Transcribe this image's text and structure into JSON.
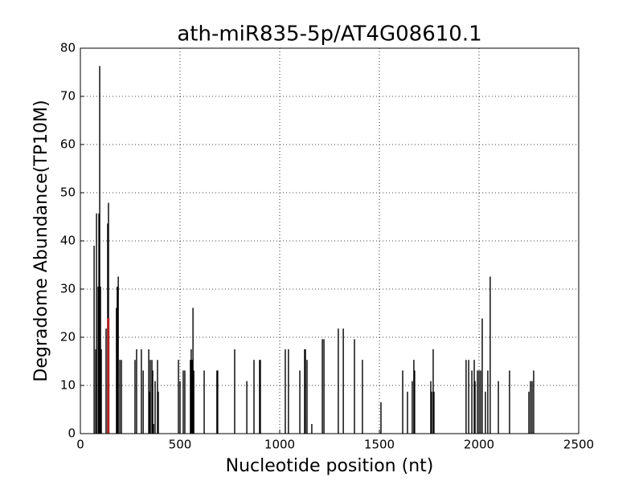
{
  "chart_data": {
    "type": "bar",
    "title": "ath-miR835-5p/AT4G08610.1",
    "x_label": "Nucleotide position (nt)",
    "y_label": "Degradome Abundance(TP10M)",
    "xlim": [
      0,
      2500
    ],
    "xticks": [
      0,
      500,
      1000,
      1500,
      2000,
      2500
    ],
    "ylim": [
      0,
      80
    ],
    "yticks": [
      0,
      10,
      20,
      30,
      40,
      50,
      60,
      70,
      80
    ],
    "grid": true,
    "series": [
      {
        "color": "#000000",
        "x": [
          69,
          77,
          81,
          89,
          93,
          97,
          101,
          105,
          129,
          137,
          141,
          181,
          185,
          190,
          198,
          206,
          274,
          282,
          306,
          315,
          343,
          347,
          351,
          359,
          363,
          367,
          375,
          387,
          391,
          492,
          500,
          516,
          524,
          552,
          556,
          560,
          565,
          569,
          621,
          685,
          689,
          774,
          835,
          871,
          899,
          903,
          1028,
          1044,
          1101,
          1125,
          1129,
          1137,
          1161,
          1214,
          1222,
          1294,
          1319,
          1375,
          1415,
          1508,
          1617,
          1641,
          1665,
          1673,
          1677,
          1758,
          1762,
          1770,
          1774,
          1935,
          1948,
          1964,
          1976,
          1980,
          1992,
          2000,
          2008,
          2016,
          2032,
          2044,
          2056,
          2097,
          2153,
          2250,
          2258,
          2266,
          2274
        ],
        "values": [
          39,
          17.5,
          45.7,
          30.5,
          45.7,
          76.3,
          30.5,
          17.5,
          21.8,
          43.6,
          47.9,
          26.1,
          30.5,
          32.6,
          15.3,
          15.3,
          15.3,
          17.5,
          17.5,
          13.1,
          17.5,
          8.7,
          15.3,
          15.3,
          13.1,
          2,
          10.9,
          15.3,
          8.7,
          15.3,
          10.9,
          13.1,
          13.1,
          15.3,
          17.5,
          15.3,
          26.1,
          13.1,
          13.1,
          13.1,
          13.1,
          17.5,
          10.9,
          15.3,
          15.3,
          15.3,
          17.5,
          17.5,
          13.1,
          17.5,
          17.5,
          15.3,
          2,
          19.6,
          19.6,
          21.8,
          21.8,
          19.6,
          15.3,
          6.5,
          13.1,
          8.7,
          10.9,
          15.3,
          13.1,
          10.9,
          8.7,
          17.5,
          8.7,
          15.3,
          15.3,
          13.1,
          15.3,
          10.9,
          13.1,
          13.1,
          13.1,
          23.9,
          8.7,
          13.1,
          32.6,
          10.9,
          13.1,
          8.7,
          10.9,
          10.9,
          13.1
        ]
      },
      {
        "color": "#b22222",
        "x": [
          140
        ],
        "values": [
          24
        ]
      }
    ]
  }
}
